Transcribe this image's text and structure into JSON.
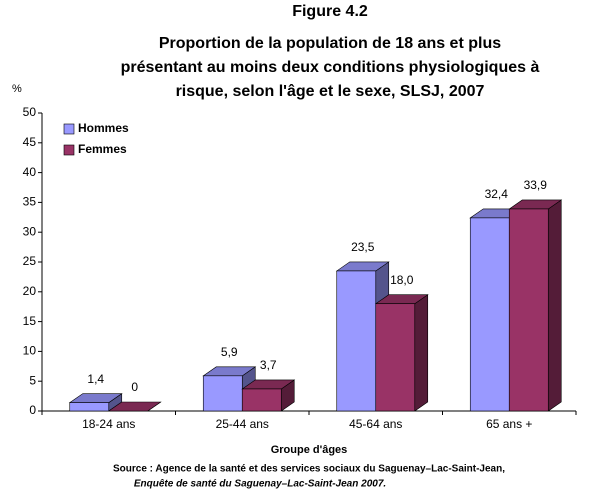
{
  "chart_data": {
    "type": "bar3d",
    "title": "Figure 4.2",
    "subtitle": [
      "Proportion de la population de 18 ans et plus",
      "présentant au moins deux conditions physiologiques à",
      "risque, selon l'âge et le sexe, SLSJ, 2007"
    ],
    "y_label": "%",
    "x_label": "Groupe d'âges",
    "source": [
      "Source : Agence de la santé et des services sociaux du Saguenay–Lac-Saint-Jean,",
      "Enquête de santé du Saguenay–Lac-Saint-Jean 2007."
    ],
    "categories": [
      "18-24 ans",
      "25-44 ans",
      "45-64 ans",
      "65 ans +"
    ],
    "series": [
      {
        "name": "Hommes",
        "color": "#9999ff",
        "values": [
          1.4,
          5.9,
          23.5,
          32.4
        ],
        "value_labels": [
          "1,4",
          "5,9",
          "23,5",
          "32,4"
        ]
      },
      {
        "name": "Femmes",
        "color": "#993366",
        "values": [
          0,
          3.7,
          18.0,
          33.9
        ],
        "value_labels": [
          "0",
          "3,7",
          "18,0",
          "33,9"
        ]
      }
    ],
    "ylim": [
      0,
      50
    ],
    "yticks": [
      0,
      5,
      10,
      15,
      20,
      25,
      30,
      35,
      40,
      45,
      50
    ],
    "legend": "top-left",
    "grid": false
  }
}
